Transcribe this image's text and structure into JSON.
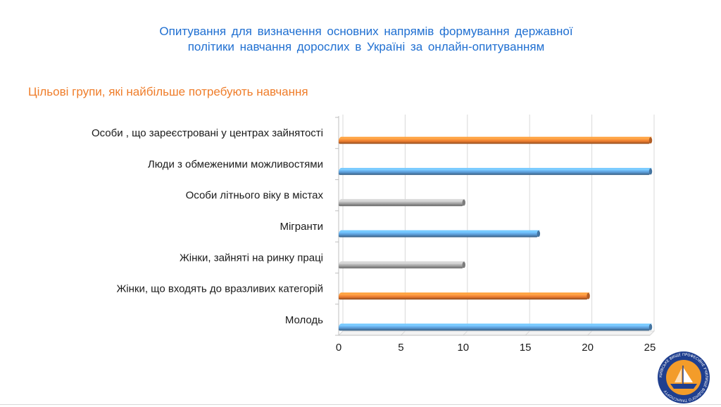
{
  "header": {
    "title_line1": "Опитування  для  визначення  основних  напрямів  формування державної",
    "title_line2": "політики  навчання  дорослих  в  Україні  за  онлайн-опитуванням"
  },
  "section": {
    "subtitle": "Цільові групи, які найбільше потребують навчання"
  },
  "colors": {
    "orange": "#ed7d31",
    "blue": "#5b9bd5",
    "gray": "#a5a5a5",
    "title_blue": "#1f6fd1",
    "subtitle_orange": "#ef7d2a"
  },
  "logo": {
    "ring_text": "КИЇВСЬКЕ ВИЩЕ ПРОФЕСІЙНЕ УЧИЛИЩЕ ВОДНОГО ТРАНСПОРТУ",
    "ring_color": "#1f3f8f",
    "inner_color": "#f39c2a"
  },
  "chart_data": {
    "type": "bar",
    "orientation": "horizontal",
    "categories": [
      "Особи , що зареєстровані у центрах зайнятості",
      "Люди з обмеженими можливостями",
      "Особи літнього віку в містах",
      "Мігранти",
      "Жінки, зайняті на ринку праці",
      "Жінки, що входять до вразливих категорій",
      "Молодь"
    ],
    "values": [
      25,
      25,
      10,
      16,
      10,
      20,
      25
    ],
    "bar_colors": [
      "orange",
      "blue",
      "gray",
      "blue",
      "gray",
      "orange",
      "blue"
    ],
    "xlim": [
      0,
      25
    ],
    "xticks": [
      0,
      5,
      10,
      15,
      20,
      25
    ],
    "grid": "vertical"
  }
}
